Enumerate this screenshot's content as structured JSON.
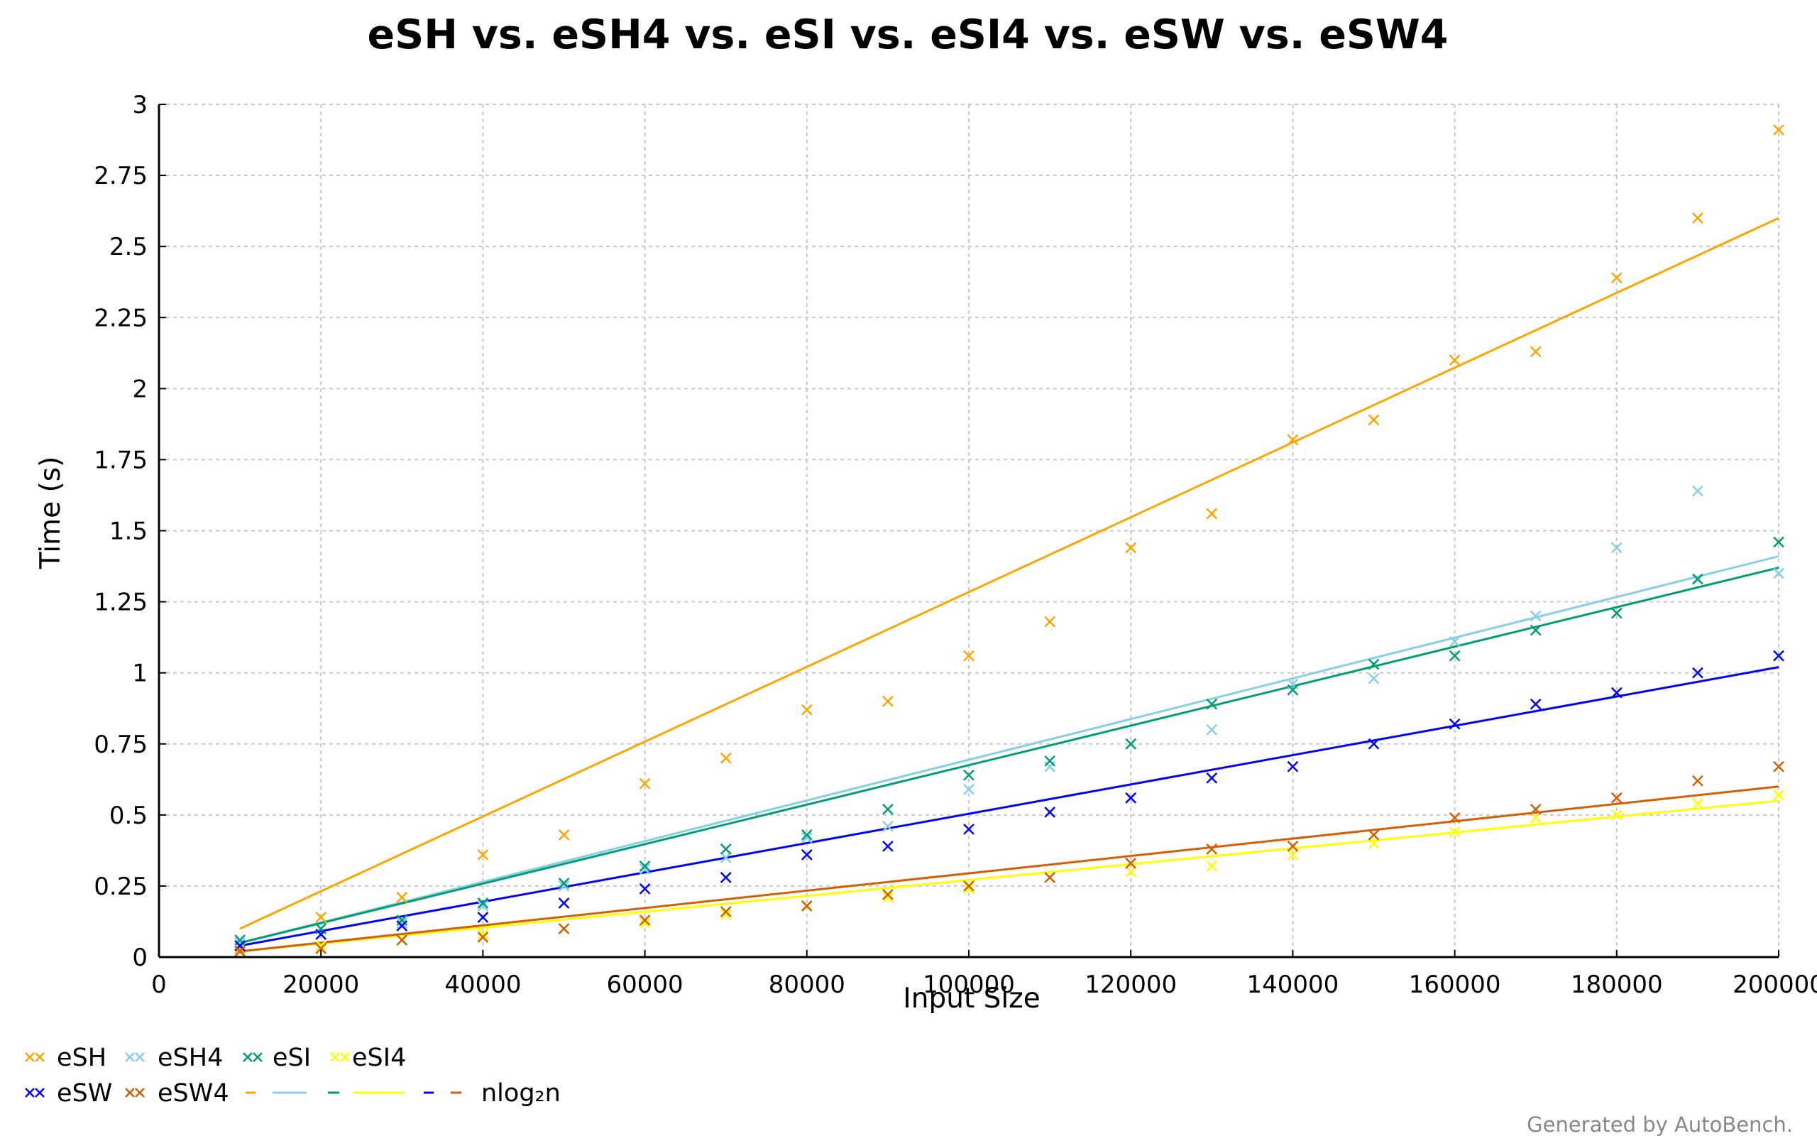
{
  "footer": "Generated by AutoBench.",
  "chart_data": {
    "type": "scatter",
    "title": "eSH vs. eSH4 vs. eSI vs. eSI4 vs. eSW vs. eSW4",
    "xlabel": "Input Size",
    "ylabel": "Time (s)",
    "xlim": [
      0,
      200000
    ],
    "ylim": [
      0,
      3
    ],
    "xticks": [
      0,
      20000,
      40000,
      60000,
      80000,
      100000,
      120000,
      140000,
      160000,
      180000,
      200000
    ],
    "xtick_labels": [
      "0",
      "20000",
      "40000",
      "60000",
      "80000",
      "100000",
      "120000",
      "140000",
      "160000",
      "180000",
      "200000"
    ],
    "yticks": [
      0,
      0.25,
      0.5,
      0.75,
      1,
      1.25,
      1.5,
      1.75,
      2,
      2.25,
      2.5,
      2.75,
      3
    ],
    "ytick_labels": [
      "0",
      "0.25",
      "0.5",
      "0.75",
      "1",
      "1.25",
      "1.5",
      "1.75",
      "2",
      "2.25",
      "2.5",
      "2.75",
      "3"
    ],
    "grid": true,
    "legend_position": "bottom-left",
    "fit_label": "nlog₂n",
    "x": [
      10000,
      20000,
      30000,
      40000,
      50000,
      60000,
      70000,
      80000,
      90000,
      100000,
      110000,
      120000,
      130000,
      140000,
      150000,
      160000,
      170000,
      180000,
      190000,
      200000
    ],
    "series": [
      {
        "name": "eSH",
        "color": "#ffa500",
        "values": [
          0.03,
          0.14,
          0.21,
          0.36,
          0.43,
          0.61,
          0.7,
          0.87,
          0.9,
          1.06,
          1.18,
          1.44,
          1.56,
          1.82,
          1.89,
          2.1,
          2.13,
          2.39,
          2.6,
          2.91
        ],
        "fit": [
          0.1,
          2.6
        ]
      },
      {
        "name": "eSH4",
        "color": "#87ceeb",
        "values": [
          0.05,
          0.1,
          0.12,
          0.18,
          0.25,
          0.31,
          0.35,
          0.42,
          0.46,
          0.59,
          0.67,
          0.75,
          0.8,
          0.96,
          0.98,
          1.11,
          1.2,
          1.44,
          1.64,
          1.35
        ],
        "fit": [
          0.05,
          1.41
        ]
      },
      {
        "name": "eSI",
        "color": "#009e73",
        "values": [
          0.06,
          0.1,
          0.13,
          0.19,
          0.26,
          0.32,
          0.38,
          0.43,
          0.52,
          0.64,
          0.69,
          0.75,
          0.89,
          0.94,
          1.03,
          1.06,
          1.15,
          1.21,
          1.33,
          1.46
        ],
        "fit": [
          0.05,
          1.37
        ]
      },
      {
        "name": "eSI4",
        "color": "#ffff00",
        "values": [
          0.02,
          0.04,
          0.06,
          0.08,
          0.1,
          0.12,
          0.15,
          0.18,
          0.21,
          0.24,
          0.28,
          0.3,
          0.32,
          0.36,
          0.4,
          0.44,
          0.49,
          0.5,
          0.54,
          0.57
        ],
        "fit": [
          0.02,
          0.55
        ]
      },
      {
        "name": "eSW",
        "color": "#0000ff",
        "values": [
          0.04,
          0.08,
          0.11,
          0.14,
          0.19,
          0.24,
          0.28,
          0.36,
          0.39,
          0.45,
          0.51,
          0.56,
          0.63,
          0.67,
          0.75,
          0.82,
          0.89,
          0.93,
          1.0,
          1.06
        ],
        "fit": [
          0.04,
          1.02
        ]
      },
      {
        "name": "eSW4",
        "color": "#d55e00",
        "values": [
          0.02,
          0.03,
          0.06,
          0.07,
          0.1,
          0.13,
          0.16,
          0.18,
          0.22,
          0.25,
          0.28,
          0.33,
          0.38,
          0.39,
          0.43,
          0.49,
          0.52,
          0.56,
          0.62,
          0.67
        ],
        "fit": [
          0.02,
          0.6
        ]
      }
    ]
  }
}
